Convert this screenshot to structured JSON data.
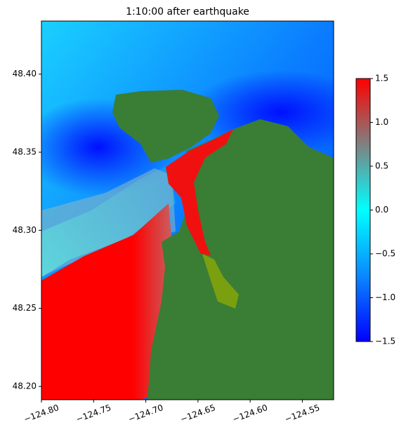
{
  "chart_data": {
    "type": "heatmap",
    "title": "1:10:00 after earthquake",
    "xlim": [
      -124.8,
      -124.52
    ],
    "ylim": [
      48.1915,
      48.434
    ],
    "xticks": [
      {
        "value": -124.8,
        "label": "−124.80"
      },
      {
        "value": -124.75,
        "label": "−124.75"
      },
      {
        "value": -124.7,
        "label": "−124.70"
      },
      {
        "value": -124.65,
        "label": "−124.65"
      },
      {
        "value": -124.6,
        "label": "−124.60"
      },
      {
        "value": -124.55,
        "label": "−124.55"
      }
    ],
    "yticks": [
      {
        "value": 48.2,
        "label": "48.20"
      },
      48.25,
      {
        "value": 48.3,
        "label": "48.30"
      },
      48.35,
      {
        "value": 48.4,
        "label": "48.40"
      }
    ],
    "colorbar": {
      "lim": [
        -1.5,
        1.5
      ],
      "ticks": [
        {
          "value": -1.5,
          "label": "−1.5"
        },
        {
          "value": -1.0,
          "label": "−1.0"
        },
        {
          "value": -0.5,
          "label": "−0.5"
        },
        {
          "value": 0,
          "label": "0.0"
        },
        0.5,
        {
          "value": 1.0,
          "label": "1.0"
        },
        1.5
      ],
      "colors": [
        "#0000ff",
        "#0a88ff",
        "#00ffff",
        "#808080",
        "#ff0000"
      ]
    }
  }
}
